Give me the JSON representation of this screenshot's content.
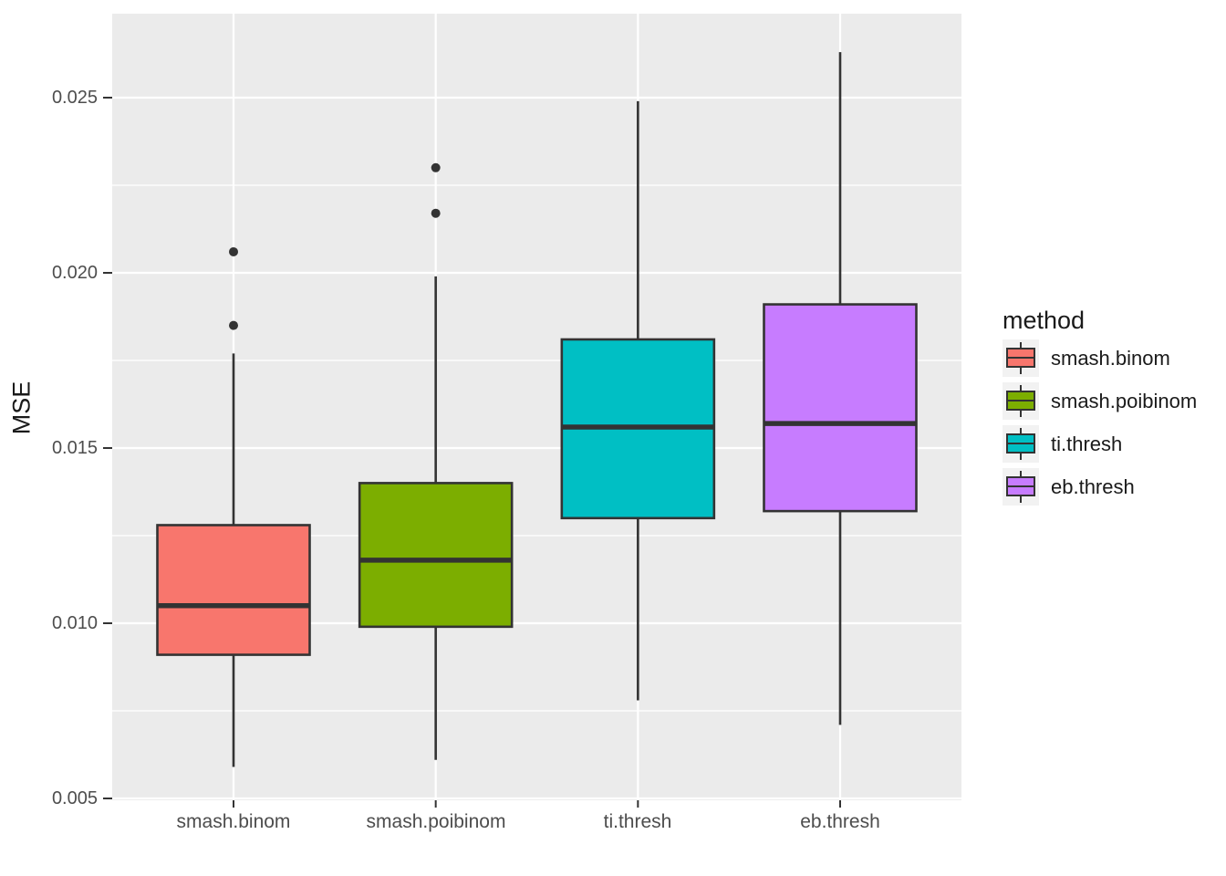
{
  "figure": {
    "background": "#FFFFFF",
    "panel_background": "#EBEBEB",
    "grid_color": "#FFFFFF",
    "outline_color": "#333333",
    "axis_text_color": "#4D4D4D",
    "title_text_color": "#1A1A1A",
    "legend_key_background": "#F2F2F2"
  },
  "chart_data": {
    "type": "boxplot",
    "title": "",
    "xlabel": "",
    "ylabel": "MSE",
    "legend_title": "method",
    "legend_position": "right",
    "grid": "white major and minor horizontal lines, white major vertical lines, on gray panel",
    "ylim": [
      0.00488,
      0.02732
    ],
    "y_ticks": [
      "0.005",
      "0.010",
      "0.015",
      "0.020",
      "0.025"
    ],
    "y_tick_values": [
      0.005,
      0.01,
      0.015,
      0.02,
      0.025
    ],
    "y_minor_gridlines": [
      0.0075,
      0.0125,
      0.0175,
      0.0225
    ],
    "categories": [
      "smash.binom",
      "smash.poibinom",
      "ti.thresh",
      "eb.thresh"
    ],
    "series": [
      {
        "name": "smash.binom",
        "color": "#F8766D",
        "whisker_low": 0.0059,
        "q1": 0.0091,
        "median": 0.0105,
        "q3": 0.0128,
        "whisker_high": 0.0177,
        "outliers": [
          0.0185,
          0.0206
        ]
      },
      {
        "name": "smash.poibinom",
        "color": "#7CAE00",
        "whisker_low": 0.0061,
        "q1": 0.0099,
        "median": 0.0118,
        "q3": 0.014,
        "whisker_high": 0.0199,
        "outliers": [
          0.0217,
          0.023
        ]
      },
      {
        "name": "ti.thresh",
        "color": "#00BFC4",
        "whisker_low": 0.0078,
        "q1": 0.013,
        "median": 0.0156,
        "q3": 0.0181,
        "whisker_high": 0.0249,
        "outliers": []
      },
      {
        "name": "eb.thresh",
        "color": "#C77CFF",
        "whisker_low": 0.0071,
        "q1": 0.0132,
        "median": 0.0157,
        "q3": 0.0191,
        "whisker_high": 0.0263,
        "outliers": []
      }
    ]
  }
}
